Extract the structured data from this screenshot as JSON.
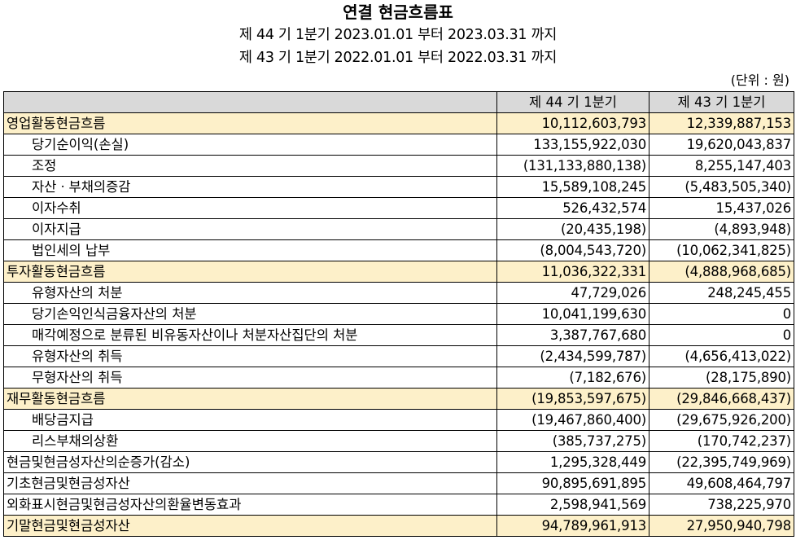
{
  "header": {
    "title": "연결 현금흐름표",
    "period_current": "제 44 기 1분기 2023.01.01 부터 2023.03.31 까지",
    "period_prior": "제 43 기 1분기 2022.01.01 부터 2022.03.31 까지",
    "unit": "(단위 : 원)"
  },
  "table": {
    "columns": [
      "",
      "제 44 기 1분기",
      "제 43 기 1분기"
    ],
    "rows": [
      {
        "label": "영업활동현금흐름",
        "current": "10,112,603,793",
        "prior": "12,339,887,153",
        "section": true,
        "indent": false
      },
      {
        "label": "당기순이익(손실)",
        "current": "133,155,922,030",
        "prior": "19,620,043,837",
        "section": false,
        "indent": true
      },
      {
        "label": "조정",
        "current": "(131,133,880,138)",
        "prior": "8,255,147,403",
        "section": false,
        "indent": true
      },
      {
        "label": "자산ㆍ부채의증감",
        "current": "15,589,108,245",
        "prior": "(5,483,505,340)",
        "section": false,
        "indent": true
      },
      {
        "label": "이자수취",
        "current": "526,432,574",
        "prior": "15,437,026",
        "section": false,
        "indent": true
      },
      {
        "label": "이자지급",
        "current": "(20,435,198)",
        "prior": "(4,893,948)",
        "section": false,
        "indent": true
      },
      {
        "label": "법인세의 납부",
        "current": "(8,004,543,720)",
        "prior": "(10,062,341,825)",
        "section": false,
        "indent": true
      },
      {
        "label": "투자활동현금흐름",
        "current": "11,036,322,331",
        "prior": "(4,888,968,685)",
        "section": true,
        "indent": false
      },
      {
        "label": "유형자산의 처분",
        "current": "47,729,026",
        "prior": "248,245,455",
        "section": false,
        "indent": true
      },
      {
        "label": "당기손익인식금융자산의 처분",
        "current": "10,041,199,630",
        "prior": "0",
        "section": false,
        "indent": true
      },
      {
        "label": "매각예정으로 분류된 비유동자산이나 처분자산집단의 처분",
        "current": "3,387,767,680",
        "prior": "0",
        "section": false,
        "indent": true
      },
      {
        "label": "유형자산의 취득",
        "current": "(2,434,599,787)",
        "prior": "(4,656,413,022)",
        "section": false,
        "indent": true
      },
      {
        "label": "무형자산의 취득",
        "current": "(7,182,676)",
        "prior": "(28,175,890)",
        "section": false,
        "indent": true
      },
      {
        "label": "재무활동현금흐름",
        "current": "(19,853,597,675)",
        "prior": "(29,846,668,437)",
        "section": true,
        "indent": false
      },
      {
        "label": "배당금지급",
        "current": "(19,467,860,400)",
        "prior": "(29,675,926,200)",
        "section": false,
        "indent": true
      },
      {
        "label": "리스부채의상환",
        "current": "(385,737,275)",
        "prior": "(170,742,237)",
        "section": false,
        "indent": true
      },
      {
        "label": "현금및현금성자산의순증가(감소)",
        "current": "1,295,328,449",
        "prior": "(22,395,749,969)",
        "section": false,
        "indent": false
      },
      {
        "label": "기초현금및현금성자산",
        "current": "90,895,691,895",
        "prior": "49,608,464,797",
        "section": false,
        "indent": false
      },
      {
        "label": "외화표시현금및현금성자산의환율변동효과",
        "current": "2,598,941,569",
        "prior": "738,225,970",
        "section": false,
        "indent": false
      },
      {
        "label": "기말현금및현금성자산",
        "current": "94,789,961,913",
        "prior": "27,950,940,798",
        "section": true,
        "indent": false
      }
    ]
  }
}
